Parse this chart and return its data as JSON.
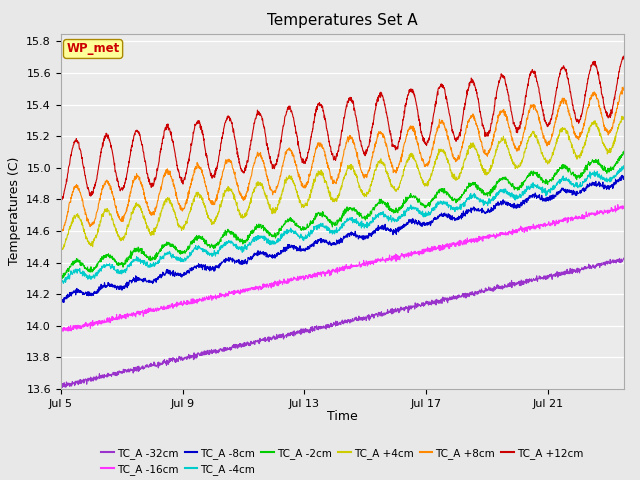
{
  "title": "Temperatures Set A",
  "xlabel": "Time",
  "ylabel": "Temperatures (C)",
  "ylim": [
    13.6,
    15.85
  ],
  "xticks": [
    "Jul 5",
    "Jul 9",
    "Jul 13",
    "Jul 17",
    "Jul 21"
  ],
  "xtick_positions": [
    0,
    4,
    8,
    12,
    16
  ],
  "series": [
    {
      "label": "TC_A -32cm",
      "color": "#9933CC",
      "base_start": 13.62,
      "base_end": 14.42,
      "daily_amp": 0.0,
      "noise_scale": 0.025
    },
    {
      "label": "TC_A -16cm",
      "color": "#FF33FF",
      "base_start": 13.97,
      "base_end": 14.75,
      "daily_amp": 0.0,
      "noise_scale": 0.03
    },
    {
      "label": "TC_A -8cm",
      "color": "#0000CC",
      "base_start": 14.18,
      "base_end": 14.92,
      "daily_amp": 0.02,
      "noise_scale": 0.03
    },
    {
      "label": "TC_A -4cm",
      "color": "#00CCCC",
      "base_start": 14.3,
      "base_end": 14.97,
      "daily_amp": 0.03,
      "noise_scale": 0.03
    },
    {
      "label": "TC_A -2cm",
      "color": "#00CC00",
      "base_start": 14.35,
      "base_end": 15.04,
      "daily_amp": 0.04,
      "noise_scale": 0.03
    },
    {
      "label": "TC_A +4cm",
      "color": "#CCCC00",
      "base_start": 14.58,
      "base_end": 15.22,
      "daily_amp": 0.1,
      "noise_scale": 0.03
    },
    {
      "label": "TC_A +8cm",
      "color": "#FF8800",
      "base_start": 14.73,
      "base_end": 15.37,
      "daily_amp": 0.13,
      "noise_scale": 0.03
    },
    {
      "label": "TC_A +12cm",
      "color": "#CC0000",
      "base_start": 14.98,
      "base_end": 15.52,
      "daily_amp": 0.18,
      "noise_scale": 0.03
    }
  ],
  "wp_met_color": "#CC0000",
  "wp_met_bg": "#FFFF99",
  "wp_met_border": "#AA8800",
  "background_color": "#E8E8E8",
  "plot_bg": "#EBEBEB",
  "grid_color": "#FFFFFF",
  "n_points": 2000,
  "total_days": 18.5,
  "yticks": [
    13.6,
    13.8,
    14.0,
    14.2,
    14.4,
    14.6,
    14.8,
    15.0,
    15.2,
    15.4,
    15.6,
    15.8
  ]
}
